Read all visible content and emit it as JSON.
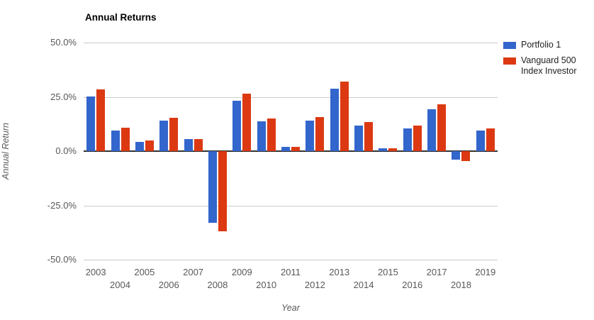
{
  "title": "Annual Returns",
  "y_axis": {
    "label": "Annual Return",
    "ticks": [
      {
        "value": 50,
        "label": "50.0%"
      },
      {
        "value": 25,
        "label": "25.0%"
      },
      {
        "value": 0,
        "label": "0.0%"
      },
      {
        "value": -25,
        "label": "-25.0%"
      },
      {
        "value": -50,
        "label": "-50.0%"
      }
    ]
  },
  "x_axis": {
    "label": "Year"
  },
  "colors": {
    "series_blue": "#3366CC",
    "series_red": "#DC3912",
    "gridline": "#cccccc",
    "zero_line": "#333333",
    "axis_text": "#585858"
  },
  "chart_data": {
    "type": "bar",
    "title": "Annual Returns",
    "xlabel": "Year",
    "ylabel": "Annual Return",
    "ylim": [
      -50,
      50
    ],
    "ytick_step": 25,
    "grid": true,
    "legend_position": "right",
    "categories": [
      "2003",
      "2004",
      "2005",
      "2006",
      "2007",
      "2008",
      "2009",
      "2010",
      "2011",
      "2012",
      "2013",
      "2014",
      "2015",
      "2016",
      "2017",
      "2018",
      "2019"
    ],
    "series": [
      {
        "name": "Portfolio 1",
        "color": "#3366CC",
        "values": [
          25.2,
          9.5,
          4.4,
          14.2,
          5.6,
          -33.0,
          23.3,
          13.8,
          2.1,
          14.2,
          28.9,
          11.9,
          1.3,
          10.5,
          19.2,
          -3.9,
          9.5
        ]
      },
      {
        "name": "Vanguard 500 Index Investor",
        "color": "#DC3912",
        "values": [
          28.5,
          10.7,
          4.8,
          15.5,
          5.4,
          -37.0,
          26.5,
          14.9,
          2.0,
          15.8,
          32.1,
          13.5,
          1.2,
          11.7,
          21.6,
          -4.5,
          10.5
        ]
      }
    ]
  }
}
